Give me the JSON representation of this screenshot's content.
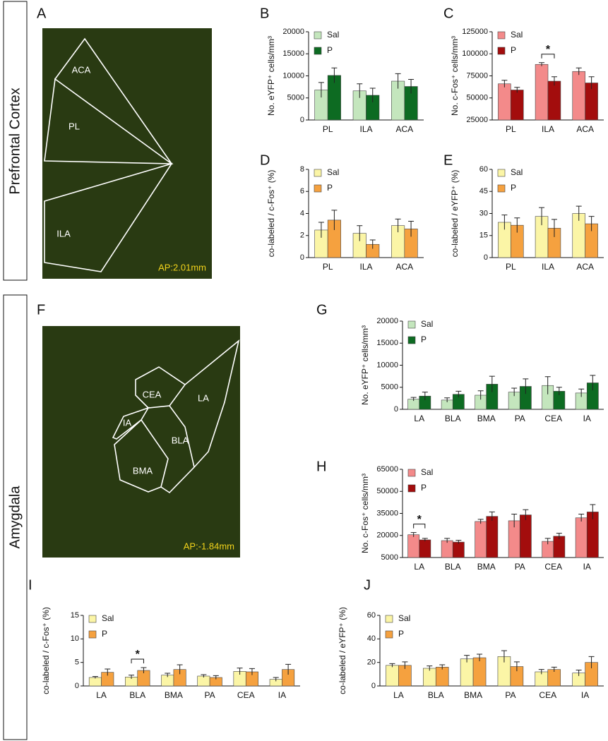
{
  "sections": [
    "Prefrontal Cortex",
    "Amygdala"
  ],
  "images": [
    {
      "panel": "A",
      "regions": [
        "ACA",
        "PL",
        "ILA"
      ],
      "annotation": "AP:2.01mm"
    },
    {
      "panel": "F",
      "regions": [
        "CEA",
        "LA",
        "IA",
        "BLA",
        "BMA"
      ],
      "annotation": "AP:-1.84mm"
    }
  ],
  "chart_data": [
    {
      "type": "bar",
      "panel": "B",
      "ylabel": "No. eYFP⁺ cells/mm³",
      "categories": [
        "PL",
        "ILA",
        "ACA"
      ],
      "series": [
        {
          "name": "Sal",
          "color": "#c4e6bd",
          "values": [
            6800,
            6600,
            8800
          ],
          "errors": [
            1700,
            1600,
            1700
          ]
        },
        {
          "name": "P",
          "color": "#0d6b22",
          "values": [
            10100,
            5600,
            7600
          ],
          "errors": [
            1700,
            1600,
            1600
          ]
        }
      ],
      "ylim": [
        0,
        20000
      ],
      "yticks": [
        0,
        5000,
        10000,
        15000,
        20000
      ],
      "annotations": []
    },
    {
      "type": "bar",
      "panel": "C",
      "ylabel": "No. c-Fos⁺ cells/mm³",
      "categories": [
        "PL",
        "ILA",
        "ACA"
      ],
      "series": [
        {
          "name": "Sal",
          "color": "#f38a8a",
          "values": [
            66000,
            88000,
            80000
          ],
          "errors": [
            4000,
            2000,
            4000
          ]
        },
        {
          "name": "P",
          "color": "#a30d0d",
          "values": [
            59000,
            69000,
            67000
          ],
          "errors": [
            3000,
            5000,
            7000
          ]
        }
      ],
      "ylim": [
        25000,
        125000
      ],
      "yticks": [
        25000,
        50000,
        75000,
        100000,
        125000
      ],
      "annotations": [
        {
          "text": "*",
          "category": "ILA"
        }
      ]
    },
    {
      "type": "bar",
      "panel": "D",
      "ylabel": "co-labeled / c-Fos⁺ (%)",
      "categories": [
        "PL",
        "ILA",
        "ACA"
      ],
      "series": [
        {
          "name": "Sal",
          "color": "#fbf5a6",
          "values": [
            2.5,
            2.2,
            2.9
          ],
          "errors": [
            0.7,
            0.7,
            0.6
          ]
        },
        {
          "name": "P",
          "color": "#f5a13f",
          "values": [
            3.4,
            1.2,
            2.6
          ],
          "errors": [
            0.9,
            0.4,
            0.7
          ]
        }
      ],
      "ylim": [
        0,
        8
      ],
      "yticks": [
        0,
        2,
        4,
        6,
        8
      ],
      "annotations": []
    },
    {
      "type": "bar",
      "panel": "E",
      "ylabel": "co-labeled / eYFP⁺ (%)",
      "categories": [
        "PL",
        "ILA",
        "ACA"
      ],
      "series": [
        {
          "name": "Sal",
          "color": "#fbf5a6",
          "values": [
            24,
            28,
            30
          ],
          "errors": [
            5,
            6,
            5
          ]
        },
        {
          "name": "P",
          "color": "#f5a13f",
          "values": [
            22,
            20,
            23
          ],
          "errors": [
            5,
            6,
            5
          ]
        }
      ],
      "ylim": [
        0,
        60
      ],
      "yticks": [
        0,
        15,
        30,
        45,
        60
      ],
      "annotations": []
    },
    {
      "type": "bar",
      "panel": "G",
      "ylabel": "No. eYFP⁺ cells/mm³",
      "categories": [
        "LA",
        "BLA",
        "BMA",
        "PA",
        "CEA",
        "IA"
      ],
      "series": [
        {
          "name": "Sal",
          "color": "#c4e6bd",
          "values": [
            2300,
            2100,
            3200,
            3900,
            5400,
            3700
          ],
          "errors": [
            400,
            500,
            1000,
            900,
            2000,
            900
          ]
        },
        {
          "name": "P",
          "color": "#0d6b22",
          "values": [
            3000,
            3400,
            5700,
            5200,
            4100,
            6000
          ],
          "errors": [
            900,
            700,
            1800,
            1700,
            900,
            1700
          ]
        }
      ],
      "ylim": [
        0,
        20000
      ],
      "yticks": [
        0,
        5000,
        10000,
        15000,
        20000
      ],
      "annotations": []
    },
    {
      "type": "bar",
      "panel": "H",
      "ylabel": "No. c-Fos⁺ cells/mm³",
      "categories": [
        "LA",
        "BLA",
        "BMA",
        "PA",
        "CEA",
        "IA"
      ],
      "series": [
        {
          "name": "Sal",
          "color": "#f38a8a",
          "values": [
            20500,
            16500,
            29500,
            30000,
            16000,
            32000
          ],
          "errors": [
            1500,
            1500,
            1500,
            4500,
            2000,
            2500
          ]
        },
        {
          "name": "P",
          "color": "#a30d0d",
          "values": [
            17000,
            15500,
            33000,
            34000,
            19500,
            36000
          ],
          "errors": [
            1000,
            1200,
            3000,
            3500,
            2000,
            5000
          ]
        }
      ],
      "ylim": [
        5000,
        65000
      ],
      "yticks": [
        5000,
        20000,
        35000,
        50000,
        65000
      ],
      "annotations": [
        {
          "text": "*",
          "category": "LA"
        }
      ]
    },
    {
      "type": "bar",
      "panel": "I",
      "ylabel": "co-labeled / c-Fos⁺ (%)",
      "categories": [
        "LA",
        "BLA",
        "BMA",
        "PA",
        "CEA",
        "IA"
      ],
      "series": [
        {
          "name": "Sal",
          "color": "#fbf5a6",
          "values": [
            1.8,
            1.9,
            2.3,
            2.1,
            3.1,
            1.4
          ],
          "errors": [
            0.2,
            0.4,
            0.4,
            0.3,
            0.7,
            0.4
          ]
        },
        {
          "name": "P",
          "color": "#f5a13f",
          "values": [
            2.9,
            3.3,
            3.5,
            1.8,
            3.0,
            3.5
          ],
          "errors": [
            0.7,
            0.6,
            1.0,
            0.4,
            0.7,
            1.1
          ]
        }
      ],
      "ylim": [
        0,
        15
      ],
      "yticks": [
        0,
        5,
        10,
        15
      ],
      "annotations": [
        {
          "text": "*",
          "category": "BLA"
        }
      ]
    },
    {
      "type": "bar",
      "panel": "J",
      "ylabel": "co-labeled / eYFP⁺ (%)",
      "categories": [
        "LA",
        "BLA",
        "BMA",
        "PA",
        "CEA",
        "IA"
      ],
      "series": [
        {
          "name": "Sal",
          "color": "#fbf5a6",
          "values": [
            17.5,
            15,
            23,
            25,
            12,
            11
          ],
          "errors": [
            1.5,
            2,
            3,
            5,
            2,
            2.5
          ]
        },
        {
          "name": "P",
          "color": "#f5a13f",
          "values": [
            17.5,
            16,
            24,
            16.5,
            14,
            20
          ],
          "errors": [
            3,
            2,
            3,
            4,
            2,
            5
          ]
        }
      ],
      "ylim": [
        0,
        60
      ],
      "yticks": [
        0,
        20,
        40,
        60
      ],
      "annotations": []
    }
  ]
}
